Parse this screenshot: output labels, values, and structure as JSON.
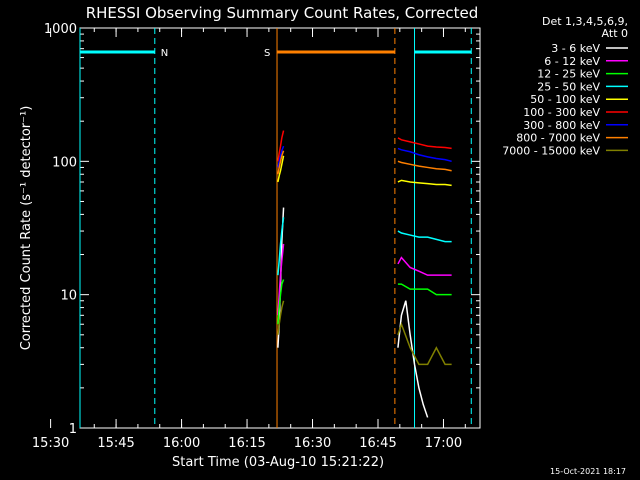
{
  "chart_data": {
    "type": "line",
    "title": "RHESSI Observing Summary Count Rates, Corrected",
    "xlabel": "Start Time (03-Aug-10 15:21:22)",
    "ylabel": "Corrected Count Rate (s⁻¹ detector⁻¹)",
    "x_ticks": [
      "15:30",
      "15:45",
      "16:00",
      "16:15",
      "16:30",
      "16:45",
      "17:00"
    ],
    "x_range_minutes": [
      15.367,
      107
    ],
    "y_scale": "log",
    "ylim": [
      1,
      1000
    ],
    "y_ticks": [
      "1",
      "10",
      "100",
      "1000"
    ],
    "legend_header": [
      "Det 1,3,4,5,6,9,",
      "Att 0"
    ],
    "footer": "15-Oct-2021 18:17",
    "legend_placement": "right",
    "grid": false,
    "flags": [
      {
        "label": "N",
        "color": "#00ffff",
        "x_start": 15.367,
        "x_end": 32.5,
        "dash_at": 32.5
      },
      {
        "label": "S",
        "color": "#ff8000",
        "x_start": 60.5,
        "x_end": 87.5,
        "dash_at": 87.5
      },
      {
        "label": "",
        "color": "#00ffff",
        "x_start": 92.0,
        "x_end": 105.0,
        "dash_at": 105.0
      }
    ],
    "series": [
      {
        "name": "3 - 6 keV",
        "color": "#ffffff",
        "seg1": {
          "x": [
            60.7,
            61.0,
            61.3,
            61.6,
            62.0
          ],
          "y": [
            4,
            6,
            12,
            25,
            45
          ]
        },
        "seg2": {
          "x": [
            88.2,
            89,
            90,
            91,
            92,
            93,
            94,
            95
          ],
          "y": [
            4,
            7,
            9,
            5,
            3,
            2,
            1.5,
            1.2
          ]
        }
      },
      {
        "name": "6 - 12 keV",
        "color": "#ff00ff",
        "seg1": {
          "x": [
            60.7,
            61.0,
            61.3,
            61.6,
            62.0
          ],
          "y": [
            7,
            10,
            14,
            18,
            24
          ]
        },
        "seg2": {
          "x": [
            88.2,
            89,
            91,
            93,
            95,
            97,
            99,
            100.5
          ],
          "y": [
            17,
            19,
            16,
            15,
            14,
            14,
            14,
            14
          ]
        }
      },
      {
        "name": "12 - 25 keV",
        "color": "#00ff00",
        "seg1": {
          "x": [
            60.7,
            61.0,
            61.3,
            61.6,
            62.0
          ],
          "y": [
            6,
            8,
            10,
            12,
            13
          ]
        },
        "seg2": {
          "x": [
            88.2,
            89,
            91,
            93,
            95,
            97,
            99,
            100.5
          ],
          "y": [
            12,
            12,
            11,
            11,
            11,
            10,
            10,
            10
          ]
        }
      },
      {
        "name": "25 - 50 keV",
        "color": "#00ffff",
        "seg1": {
          "x": [
            60.7,
            61.0,
            61.3,
            61.6,
            62.0
          ],
          "y": [
            14,
            18,
            24,
            30,
            38
          ]
        },
        "seg2": {
          "x": [
            88.2,
            89,
            91,
            93,
            95,
            97,
            99,
            100.5
          ],
          "y": [
            30,
            29,
            28,
            27,
            27,
            26,
            25,
            25
          ]
        }
      },
      {
        "name": "50 - 100 keV",
        "color": "#ffff00",
        "seg1": {
          "x": [
            60.7,
            61.0,
            61.3,
            61.6,
            62.0
          ],
          "y": [
            70,
            78,
            85,
            95,
            110
          ]
        },
        "seg2": {
          "x": [
            88.2,
            89,
            91,
            93,
            95,
            97,
            99,
            100.5
          ],
          "y": [
            70,
            72,
            70,
            69,
            68,
            67,
            67,
            66
          ]
        }
      },
      {
        "name": "100 - 300 keV",
        "color": "#ff0000",
        "seg1": {
          "x": [
            60.7,
            61.0,
            61.3,
            61.6,
            62.0
          ],
          "y": [
            100,
            115,
            130,
            150,
            170
          ]
        },
        "seg2": {
          "x": [
            88.2,
            89,
            91,
            93,
            95,
            97,
            99,
            100.5
          ],
          "y": [
            150,
            145,
            140,
            135,
            130,
            128,
            127,
            125
          ]
        }
      },
      {
        "name": "300 - 800 keV",
        "color": "#0000ff",
        "seg1": {
          "x": [
            60.7,
            61.0,
            61.3,
            61.6,
            62.0
          ],
          "y": [
            90,
            100,
            110,
            120,
            130
          ]
        },
        "seg2": {
          "x": [
            88.2,
            89,
            91,
            93,
            95,
            97,
            99,
            100.5
          ],
          "y": [
            125,
            122,
            118,
            112,
            108,
            105,
            103,
            100
          ]
        }
      },
      {
        "name": "800 - 7000 keV",
        "color": "#ff8000",
        "seg1": {
          "x": [
            60.7,
            61.0,
            61.3,
            61.6,
            62.0
          ],
          "y": [
            80,
            90,
            100,
            110,
            120
          ]
        },
        "seg2": {
          "x": [
            88.2,
            89,
            91,
            93,
            95,
            97,
            99,
            100.5
          ],
          "y": [
            100,
            98,
            95,
            92,
            90,
            88,
            87,
            85
          ]
        }
      },
      {
        "name": "7000 - 15000 keV",
        "color": "#808000",
        "seg1": {
          "x": [
            60.7,
            61.0,
            61.3,
            61.6,
            62.0
          ],
          "y": [
            5,
            6,
            7,
            8,
            9
          ]
        },
        "seg2": {
          "x": [
            88.2,
            89,
            91,
            93,
            95,
            97,
            99,
            100.5
          ],
          "y": [
            5,
            6,
            4,
            3,
            3,
            4,
            3,
            3
          ]
        }
      }
    ]
  }
}
